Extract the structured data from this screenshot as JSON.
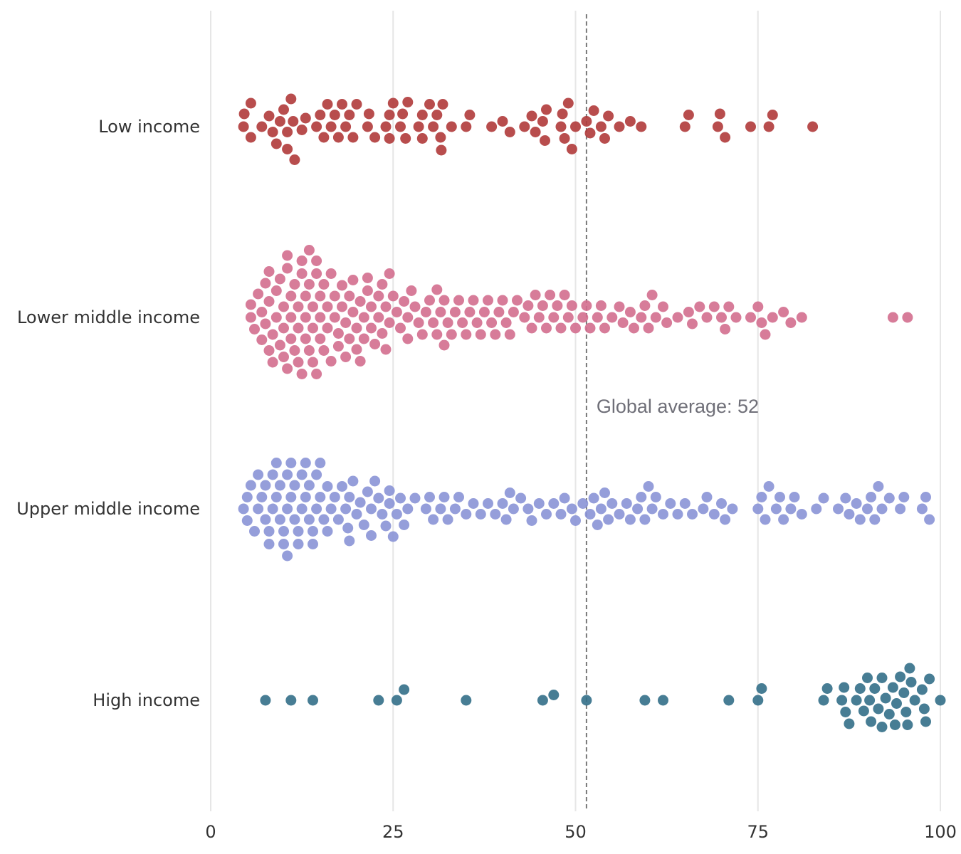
{
  "chart_data": {
    "type": "scatter",
    "subtype": "beeswarm",
    "title": "",
    "xlabel": "",
    "ylabel": "",
    "xlim": [
      0,
      100
    ],
    "x_ticks": [
      0,
      25,
      50,
      75,
      100
    ],
    "grid": "vertical",
    "legend": "none",
    "reference_line": {
      "value": 51.5,
      "label": "Global average: 52",
      "style": "dashed",
      "color": "#777777"
    },
    "categories": [
      "Low income",
      "Lower middle income",
      "Upper middle income",
      "High income"
    ],
    "series": [
      {
        "category": "Low income",
        "color": "#b03a3a",
        "values": [
          4.5,
          4.6,
          5.5,
          5.5,
          7.0,
          8.0,
          8.5,
          9.0,
          9.5,
          10.0,
          10.5,
          10.5,
          11.0,
          11.3,
          11.5,
          12.5,
          13.0,
          14.5,
          15.0,
          15.5,
          16.0,
          16.5,
          17.0,
          17.5,
          18.0,
          18.5,
          19.0,
          19.5,
          20.0,
          21.5,
          21.7,
          22.5,
          24.0,
          24.5,
          24.5,
          25.0,
          26.0,
          26.3,
          26.7,
          27.0,
          28.5,
          29.0,
          29.0,
          30.0,
          30.5,
          31.0,
          31.5,
          31.6,
          31.8,
          33.0,
          35.0,
          35.5,
          38.5,
          40.0,
          41.0,
          43.0,
          44.0,
          44.5,
          45.5,
          45.8,
          46.0,
          48.0,
          48.2,
          48.5,
          49.0,
          49.5,
          50.0,
          51.5,
          52.0,
          52.5,
          53.5,
          54.0,
          54.5,
          56.0,
          57.5,
          59.0,
          65.0,
          65.5,
          69.5,
          69.8,
          70.5,
          74.0,
          76.5,
          77.0,
          82.5
        ]
      },
      {
        "category": "Lower middle income",
        "color": "#d36e8e",
        "values": [
          5.5,
          5.5,
          6.0,
          6.5,
          7.0,
          7.0,
          7.5,
          7.5,
          8.0,
          8.0,
          8.0,
          8.5,
          8.5,
          9.0,
          9.0,
          9.5,
          9.5,
          10.0,
          10.0,
          10.0,
          10.5,
          10.5,
          10.5,
          11.0,
          11.0,
          11.0,
          11.5,
          11.5,
          12.0,
          12.0,
          12.0,
          12.5,
          12.5,
          12.5,
          13.0,
          13.0,
          13.0,
          13.5,
          13.5,
          13.5,
          14.0,
          14.0,
          14.0,
          14.5,
          14.5,
          14.5,
          15.0,
          15.0,
          15.0,
          15.5,
          15.5,
          16.0,
          16.0,
          16.5,
          16.5,
          17.0,
          17.0,
          17.5,
          17.5,
          18.0,
          18.0,
          18.5,
          18.5,
          19.0,
          19.0,
          19.5,
          19.5,
          20.0,
          20.0,
          20.5,
          20.5,
          21.0,
          21.0,
          21.5,
          21.5,
          22.0,
          22.0,
          22.5,
          23.0,
          23.0,
          23.5,
          23.5,
          24.0,
          24.0,
          24.5,
          24.5,
          25.0,
          25.5,
          26.0,
          26.5,
          27.0,
          27.0,
          27.5,
          28.0,
          28.5,
          29.0,
          29.5,
          30.0,
          30.5,
          31.0,
          31.0,
          31.5,
          32.0,
          32.0,
          32.5,
          33.0,
          33.5,
          34.0,
          34.5,
          35.0,
          35.5,
          36.0,
          36.5,
          37.0,
          37.5,
          38.0,
          38.5,
          39.0,
          39.5,
          40.0,
          40.5,
          41.0,
          41.5,
          42.0,
          43.0,
          43.5,
          44.0,
          44.5,
          45.0,
          45.5,
          46.0,
          46.5,
          47.0,
          47.5,
          48.0,
          48.5,
          49.0,
          49.5,
          50.0,
          51.0,
          51.5,
          52.0,
          53.0,
          53.5,
          54.0,
          55.0,
          56.0,
          56.5,
          57.5,
          58.0,
          59.0,
          59.5,
          60.0,
          60.5,
          61.0,
          62.0,
          62.5,
          64.0,
          65.5,
          66.0,
          67.0,
          68.0,
          69.0,
          70.0,
          70.5,
          71.0,
          72.0,
          74.0,
          75.0,
          75.5,
          76.0,
          77.0,
          78.5,
          79.5,
          81.0,
          93.5,
          95.5
        ]
      },
      {
        "category": "Upper middle income",
        "color": "#8a93d6",
        "values": [
          4.5,
          5.0,
          5.0,
          5.5,
          6.0,
          6.5,
          6.5,
          7.0,
          7.5,
          7.5,
          8.0,
          8.0,
          8.5,
          8.5,
          9.0,
          9.0,
          9.5,
          9.5,
          10.0,
          10.0,
          10.5,
          10.5,
          10.5,
          11.0,
          11.0,
          11.5,
          11.5,
          12.0,
          12.0,
          12.5,
          12.5,
          13.0,
          13.0,
          13.5,
          13.5,
          14.0,
          14.0,
          14.5,
          14.5,
          15.0,
          15.0,
          15.5,
          16.0,
          16.0,
          16.5,
          17.0,
          17.5,
          18.0,
          18.5,
          18.8,
          19.0,
          19.0,
          19.5,
          20.0,
          20.5,
          21.0,
          21.5,
          22.0,
          22.0,
          22.5,
          23.0,
          23.5,
          24.0,
          24.5,
          24.5,
          25.0,
          25.5,
          26.0,
          26.5,
          27.0,
          28.0,
          29.5,
          30.0,
          30.5,
          31.5,
          32.0,
          32.5,
          33.5,
          34.0,
          35.0,
          36.0,
          37.0,
          38.0,
          39.0,
          40.0,
          40.5,
          41.0,
          41.5,
          42.5,
          43.5,
          44.0,
          45.0,
          46.0,
          47.0,
          48.0,
          48.5,
          49.5,
          50.0,
          51.0,
          52.0,
          52.5,
          53.0,
          53.5,
          54.0,
          54.5,
          55.0,
          56.0,
          57.0,
          57.5,
          58.5,
          59.0,
          59.5,
          60.0,
          60.5,
          61.0,
          62.0,
          63.0,
          64.0,
          65.0,
          66.0,
          67.5,
          68.0,
          69.0,
          70.0,
          70.5,
          71.5,
          75.0,
          75.5,
          76.0,
          76.5,
          77.5,
          78.0,
          78.5,
          79.5,
          80.0,
          81.0,
          83.0,
          84.0,
          86.0,
          87.0,
          87.5,
          88.5,
          89.0,
          90.0,
          90.5,
          91.0,
          91.5,
          92.0,
          93.0,
          94.5,
          95.0,
          97.5,
          98.0,
          98.5
        ]
      },
      {
        "category": "High income",
        "color": "#336f88",
        "values": [
          7.5,
          11.0,
          14.0,
          23.0,
          25.5,
          26.5,
          35.0,
          45.5,
          47.0,
          51.5,
          59.5,
          62.0,
          71.0,
          75.0,
          75.5,
          84.0,
          84.5,
          86.5,
          86.8,
          87.0,
          87.5,
          88.5,
          89.0,
          89.5,
          90.0,
          90.3,
          90.5,
          91.0,
          91.5,
          92.0,
          92.0,
          92.5,
          93.0,
          93.5,
          93.8,
          94.0,
          94.5,
          95.0,
          95.3,
          95.5,
          95.8,
          96.0,
          96.5,
          97.5,
          97.8,
          98.0,
          98.5,
          100.0
        ]
      }
    ]
  }
}
